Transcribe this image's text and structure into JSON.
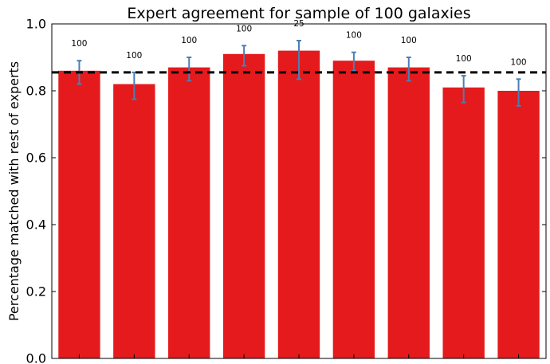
{
  "chart_data": {
    "type": "bar",
    "title": "Expert agreement for sample of 100 galaxies",
    "xlabel": "",
    "ylabel": "Percentage matched with rest of experts",
    "ylim": [
      0.0,
      1.0
    ],
    "yticks": [
      "0.0",
      "0.2",
      "0.4",
      "0.6",
      "0.8",
      "1.0"
    ],
    "grid": false,
    "categories": [
      "",
      "",
      "",
      "",
      "",
      "",
      "",
      "",
      ""
    ],
    "values": [
      0.86,
      0.82,
      0.87,
      0.91,
      0.92,
      0.89,
      0.87,
      0.81,
      0.8
    ],
    "error_low": [
      0.04,
      0.045,
      0.04,
      0.035,
      0.085,
      0.03,
      0.04,
      0.045,
      0.045
    ],
    "error_high": [
      0.03,
      0.035,
      0.03,
      0.025,
      0.03,
      0.025,
      0.03,
      0.035,
      0.035
    ],
    "bar_labels": [
      "100",
      "100",
      "100",
      "100",
      "25",
      "100",
      "100",
      "100",
      "100"
    ],
    "reference_line": 0.855,
    "colors": {
      "bar": "#e41a1c",
      "errorbar": "#4a7fb5",
      "reference_line": "#000000"
    }
  }
}
